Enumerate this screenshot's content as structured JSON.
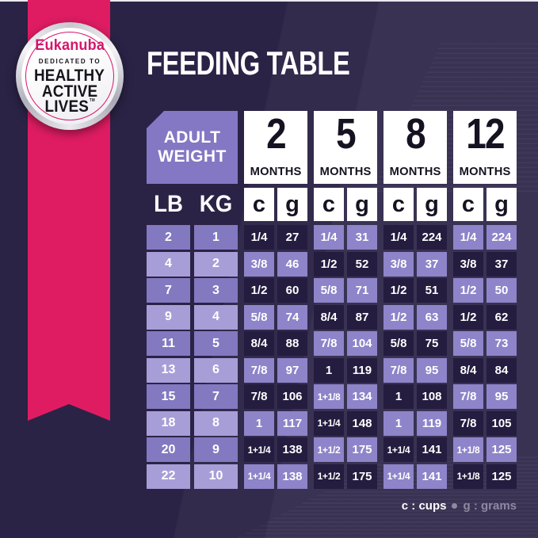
{
  "title": "FEEDING TABLE",
  "badge": {
    "brand": "Eukanuba",
    "tagline": "DEDICATED TO",
    "line1": "HEALTHY",
    "line2": "ACTIVE",
    "line3": "LIVES",
    "tm": "TM"
  },
  "table": {
    "corner": {
      "line1": "ADULT",
      "line2": "WEIGHT"
    },
    "weight_units": [
      "LB",
      "KG"
    ],
    "month_headers": [
      {
        "number": "2",
        "label": "MONTHS"
      },
      {
        "number": "5",
        "label": "MONTHS"
      },
      {
        "number": "8",
        "label": "MONTHS"
      },
      {
        "number": "12",
        "label": "MONTHS"
      }
    ],
    "unit_letters": [
      "c",
      "g",
      "c",
      "g",
      "c",
      "g",
      "c",
      "g"
    ],
    "rows": [
      {
        "lb": "2",
        "kg": "1",
        "values": [
          "1/4",
          "27",
          "1/4",
          "31",
          "1/4",
          "224",
          "1/4",
          "224"
        ]
      },
      {
        "lb": "4",
        "kg": "2",
        "values": [
          "3/8",
          "46",
          "1/2",
          "52",
          "3/8",
          "37",
          "3/8",
          "37"
        ]
      },
      {
        "lb": "7",
        "kg": "3",
        "values": [
          "1/2",
          "60",
          "5/8",
          "71",
          "1/2",
          "51",
          "1/2",
          "50"
        ]
      },
      {
        "lb": "9",
        "kg": "4",
        "values": [
          "5/8",
          "74",
          "8/4",
          "87",
          "1/2",
          "63",
          "1/2",
          "62"
        ]
      },
      {
        "lb": "11",
        "kg": "5",
        "values": [
          "8/4",
          "88",
          "7/8",
          "104",
          "5/8",
          "75",
          "5/8",
          "73"
        ]
      },
      {
        "lb": "13",
        "kg": "6",
        "values": [
          "7/8",
          "97",
          "1",
          "119",
          "7/8",
          "95",
          "8/4",
          "84"
        ]
      },
      {
        "lb": "15",
        "kg": "7",
        "values": [
          "7/8",
          "106",
          "1+1/8",
          "134",
          "1",
          "108",
          "7/8",
          "95"
        ]
      },
      {
        "lb": "18",
        "kg": "8",
        "values": [
          "1",
          "117",
          "1+1/4",
          "148",
          "1",
          "119",
          "7/8",
          "105"
        ]
      },
      {
        "lb": "20",
        "kg": "9",
        "values": [
          "1+1/4",
          "138",
          "1+1/2",
          "175",
          "1+1/4",
          "141",
          "1+1/8",
          "125"
        ]
      },
      {
        "lb": "22",
        "kg": "10",
        "values": [
          "1+1/4",
          "138",
          "1+1/2",
          "175",
          "1+1/4",
          "141",
          "1+1/8",
          "125"
        ]
      }
    ]
  },
  "legend": {
    "cups": "c : cups",
    "separator": "•",
    "grams": "g : grams"
  },
  "colors": {
    "bg": "#2b2346",
    "pink": "#df1c62",
    "badge_pink": "#d4166b",
    "header_purple": "#8478c4",
    "row_mid": "#8379c0",
    "row_light": "#a79ed8",
    "dark_cell": "#241d3f",
    "purple_cell": "#8e84c9",
    "gray": "#8e89a0",
    "white": "#ffffff"
  },
  "chart_data": {
    "type": "table",
    "title": "FEEDING TABLE",
    "column_groups": [
      "ADULT WEIGHT",
      "2 MONTHS",
      "5 MONTHS",
      "8 MONTHS",
      "12 MONTHS"
    ],
    "columns": [
      "LB",
      "KG",
      "2mo c",
      "2mo g",
      "5mo c",
      "5mo g",
      "8mo c",
      "8mo g",
      "12mo c",
      "12mo g"
    ],
    "rows": [
      [
        "2",
        "1",
        "1/4",
        "27",
        "1/4",
        "31",
        "1/4",
        "224",
        "1/4",
        "224"
      ],
      [
        "4",
        "2",
        "3/8",
        "46",
        "1/2",
        "52",
        "3/8",
        "37",
        "3/8",
        "37"
      ],
      [
        "7",
        "3",
        "1/2",
        "60",
        "5/8",
        "71",
        "1/2",
        "51",
        "1/2",
        "50"
      ],
      [
        "9",
        "4",
        "5/8",
        "74",
        "8/4",
        "87",
        "1/2",
        "63",
        "1/2",
        "62"
      ],
      [
        "11",
        "5",
        "8/4",
        "88",
        "7/8",
        "104",
        "5/8",
        "75",
        "5/8",
        "73"
      ],
      [
        "13",
        "6",
        "7/8",
        "97",
        "1",
        "119",
        "7/8",
        "95",
        "8/4",
        "84"
      ],
      [
        "15",
        "7",
        "7/8",
        "106",
        "1+1/8",
        "134",
        "1",
        "108",
        "7/8",
        "95"
      ],
      [
        "18",
        "8",
        "1",
        "117",
        "1+1/4",
        "148",
        "1",
        "119",
        "7/8",
        "105"
      ],
      [
        "20",
        "9",
        "1+1/4",
        "138",
        "1+1/2",
        "175",
        "1+1/4",
        "141",
        "1+1/8",
        "125"
      ],
      [
        "22",
        "10",
        "1+1/4",
        "138",
        "1+1/2",
        "175",
        "1+1/4",
        "141",
        "1+1/8",
        "125"
      ]
    ],
    "units_note": "c : cups • g : grams"
  }
}
